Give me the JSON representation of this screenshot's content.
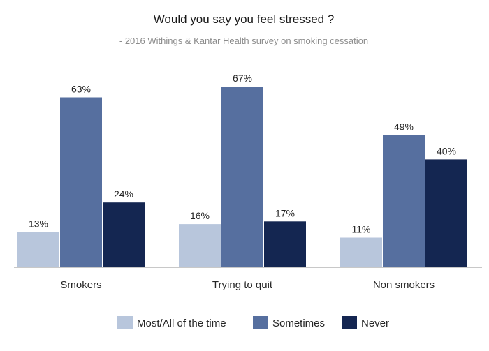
{
  "chart_data": {
    "type": "bar",
    "title": "Would you say you feel stressed ?",
    "subtitle": "- 2016 Withings & Kantar Health survey on smoking cessation",
    "categories": [
      "Smokers",
      "Trying to quit",
      "Non smokers"
    ],
    "series": [
      {
        "name": "Most/All of the time",
        "color": "#b8c6dc",
        "values": [
          13,
          16,
          11
        ],
        "labels": [
          "13%",
          "16%",
          "11%"
        ]
      },
      {
        "name": "Sometimes",
        "color": "#566f9f",
        "values": [
          63,
          67,
          49
        ],
        "labels": [
          "63%",
          "67%",
          "49%"
        ]
      },
      {
        "name": "Never",
        "color": "#142651",
        "values": [
          24,
          17,
          40
        ],
        "labels": [
          "24%",
          "17%",
          "40%"
        ]
      }
    ],
    "unit": "%",
    "ylim": [
      0,
      67
    ],
    "grid": false,
    "legend_position": "bottom"
  }
}
